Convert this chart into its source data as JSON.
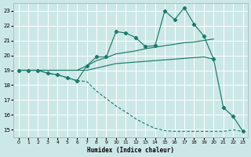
{
  "xlabel": "Humidex (Indice chaleur)",
  "bg_color": "#cce8e6",
  "grid_color": "#ffffff",
  "line_color": "#1a7a6a",
  "xlim": [
    -0.5,
    23.5
  ],
  "ylim": [
    14.5,
    23.5
  ],
  "xticks": [
    0,
    1,
    2,
    3,
    4,
    5,
    6,
    7,
    8,
    9,
    10,
    11,
    12,
    13,
    14,
    15,
    16,
    17,
    18,
    19,
    20,
    21,
    22,
    23
  ],
  "yticks": [
    15,
    16,
    17,
    18,
    19,
    20,
    21,
    22,
    23
  ],
  "line_jagged_x": [
    0,
    1,
    2,
    3,
    4,
    5,
    6,
    7,
    8,
    9,
    10,
    11,
    12,
    13,
    14,
    15,
    16,
    17,
    18,
    19,
    20,
    21,
    22,
    23
  ],
  "line_jagged_y": [
    19,
    19,
    19,
    18.8,
    18.7,
    18.5,
    18.3,
    19.3,
    19.9,
    19.9,
    21.6,
    21.5,
    21.2,
    20.6,
    20.65,
    23.0,
    22.4,
    23.2,
    22.1,
    21.3,
    19.75,
    16.5,
    15.9,
    14.9
  ],
  "line_upper_diag_x": [
    0,
    1,
    2,
    3,
    4,
    5,
    6,
    7,
    8,
    9,
    10,
    11,
    12,
    13,
    14,
    15,
    16,
    17,
    18,
    19,
    20
  ],
  "line_upper_diag_y": [
    19,
    19,
    19,
    19,
    19,
    19,
    19,
    19.3,
    19.65,
    19.85,
    20.1,
    20.2,
    20.3,
    20.45,
    20.55,
    20.65,
    20.75,
    20.85,
    20.9,
    21.0,
    21.1
  ],
  "line_mid_x": [
    0,
    1,
    2,
    3,
    4,
    5,
    6,
    7,
    8,
    9,
    10,
    11,
    12,
    13,
    14,
    15,
    16,
    17,
    18,
    19,
    20
  ],
  "line_mid_y": [
    19,
    19,
    19,
    19,
    19,
    19,
    19,
    19.0,
    19.15,
    19.3,
    19.45,
    19.5,
    19.55,
    19.6,
    19.65,
    19.7,
    19.75,
    19.8,
    19.85,
    19.9,
    19.75
  ],
  "line_lower_x": [
    0,
    1,
    2,
    3,
    4,
    5,
    6,
    7,
    8,
    9,
    10,
    11,
    12,
    13,
    14,
    15,
    16,
    17,
    18,
    19,
    20,
    21,
    22,
    23
  ],
  "line_lower_y": [
    19,
    19,
    19,
    18.8,
    18.7,
    18.5,
    18.3,
    18.25,
    17.6,
    17.1,
    16.6,
    16.2,
    15.75,
    15.4,
    15.1,
    14.95,
    14.9,
    14.9,
    14.9,
    14.9,
    14.9,
    14.9,
    15.0,
    14.9
  ]
}
